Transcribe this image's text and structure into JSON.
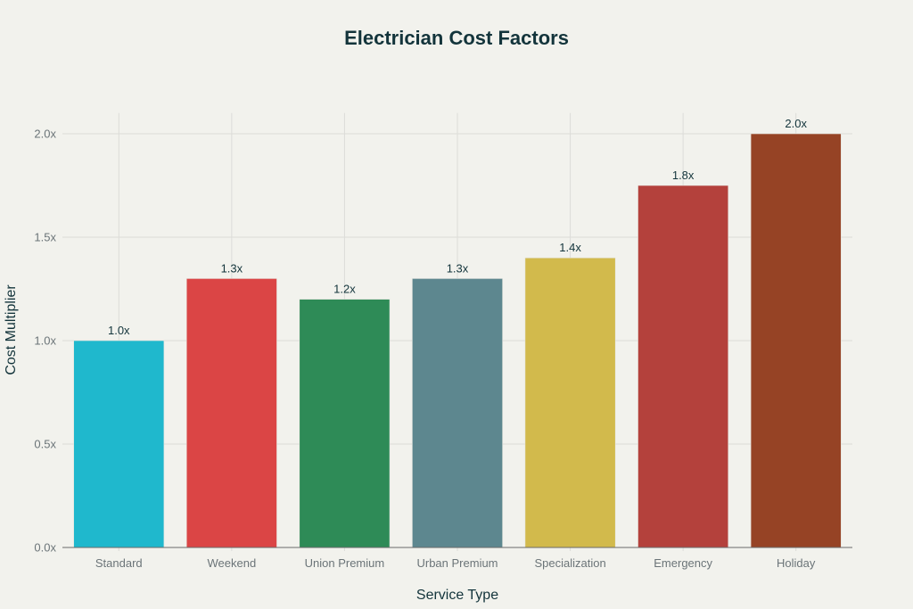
{
  "chart_data": {
    "type": "bar",
    "title": "Electrician Cost Factors",
    "xlabel": "Service Type",
    "ylabel": "Cost Multiplier",
    "categories": [
      "Standard",
      "Weekend",
      "Union Premium",
      "Urban Premium",
      "Specialization",
      "Emergency",
      "Holiday"
    ],
    "values": [
      1.0,
      1.3,
      1.2,
      1.3,
      1.4,
      1.75,
      2.0
    ],
    "data_labels": [
      "1.0x",
      "1.3x",
      "1.2x",
      "1.3x",
      "1.4x",
      "1.8x",
      "2.0x"
    ],
    "colors": [
      "#1fb8cd",
      "#db4545",
      "#2e8b57",
      "#5d878f",
      "#d2ba4c",
      "#b4413c",
      "#964325"
    ],
    "yticks": [
      0,
      0.5,
      1.0,
      1.5,
      2.0
    ],
    "ytick_labels": [
      "0.0x",
      "0.5x",
      "1.0x",
      "1.5x",
      "2.0x"
    ],
    "ylim": [
      0,
      2.1
    ],
    "grid": true,
    "legend": "none"
  }
}
